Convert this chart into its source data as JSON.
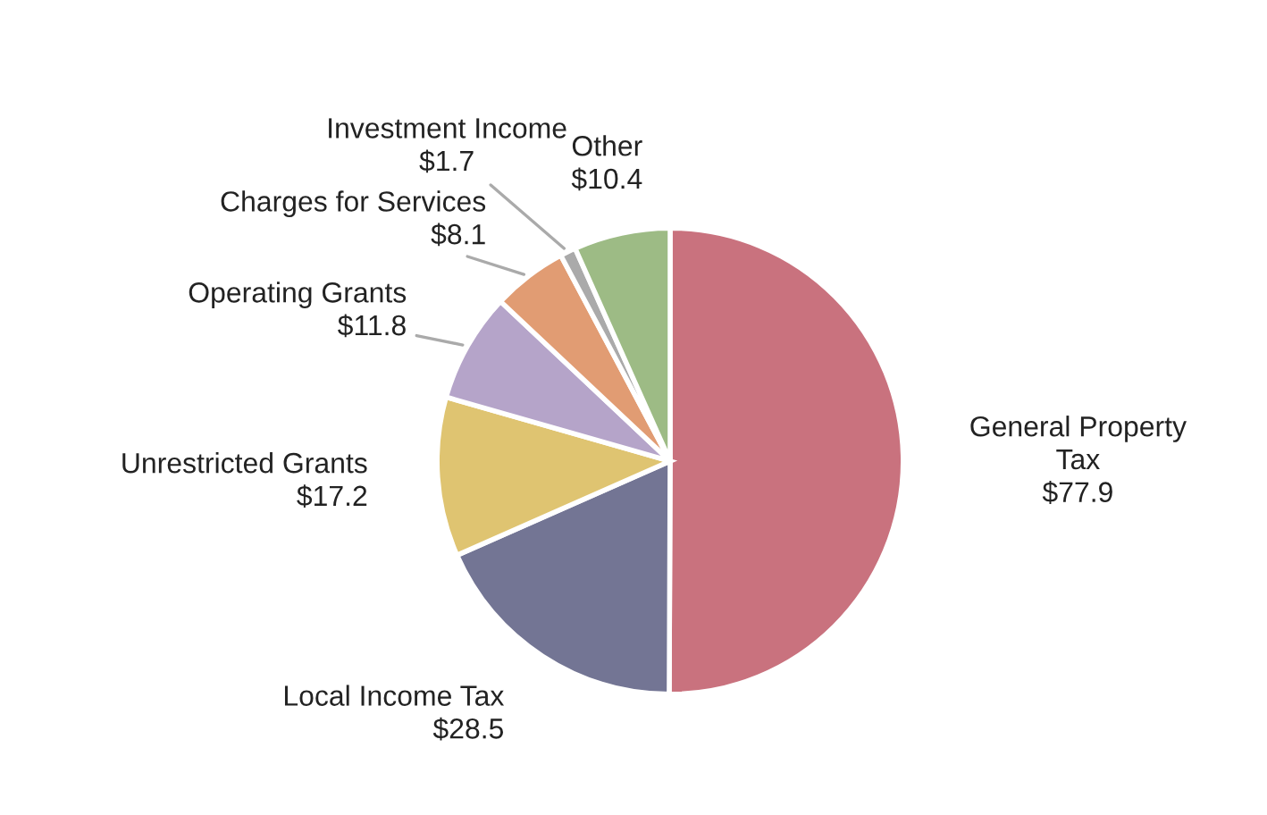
{
  "chart_data": {
    "type": "pie",
    "categories": [
      "General Property Tax",
      "Local Income Tax",
      "Unrestricted Grants",
      "Operating Grants",
      "Charges for Services",
      "Investment Income",
      "Other"
    ],
    "values": [
      77.9,
      28.5,
      17.2,
      11.8,
      8.1,
      1.7,
      10.4
    ],
    "value_labels": [
      "$77.9",
      "$28.5",
      "$17.2",
      "$11.8",
      "$8.1",
      "$1.7",
      "$10.4"
    ],
    "colors": [
      "#c9727e",
      "#737594",
      "#dfc471",
      "#b5a4c9",
      "#e19c73",
      "#aaaaaa",
      "#9dbb85"
    ],
    "legend": false
  }
}
